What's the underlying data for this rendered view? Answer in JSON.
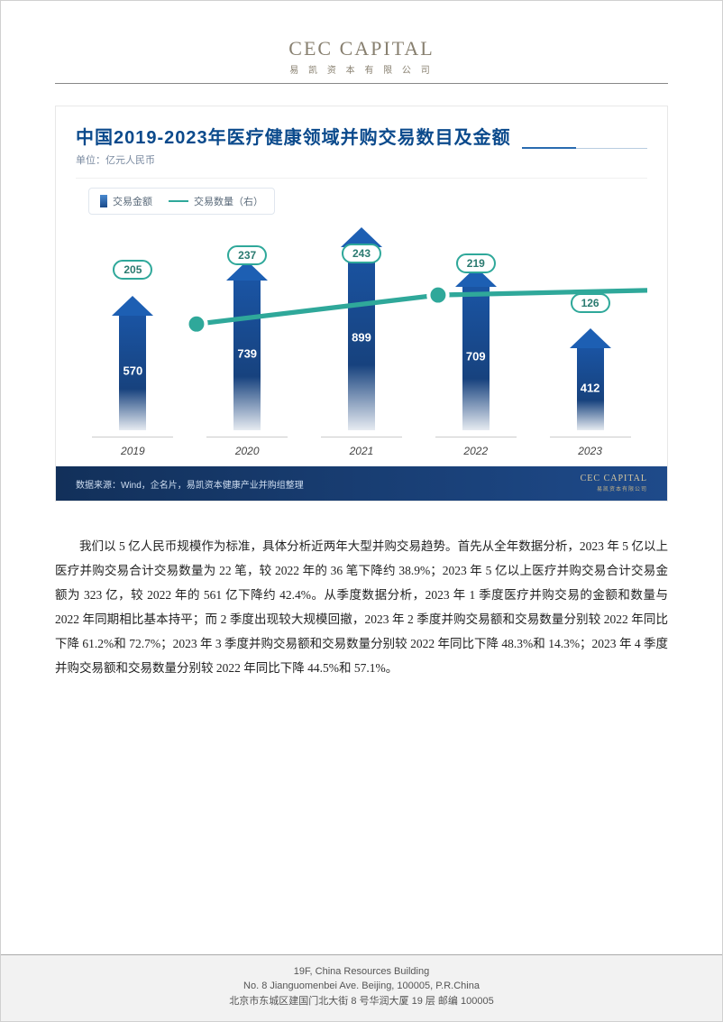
{
  "header": {
    "logo_main": "CEC CAPITAL",
    "logo_sub": "易 凯 资 本 有 限 公 司"
  },
  "chart": {
    "type": "bar+line",
    "title": "中国2019-2023年医疗健康领域并购交易数目及金额",
    "unit": "单位：亿元人民币",
    "legend_bar": "交易金额",
    "legend_line": "交易数量（右）",
    "categories": [
      "2019",
      "2020",
      "2021",
      "2022",
      "2023"
    ],
    "bar_values": [
      570,
      739,
      899,
      709,
      412
    ],
    "bar_max": 1000,
    "bar_color_top": "#1d5fb3",
    "bar_color_mid": "#17427e",
    "line_values": [
      205,
      237,
      243,
      219,
      126
    ],
    "line_max": 300,
    "line_color": "#2fa89a",
    "source": "数据来源：Wind，企名片，易凯资本健康产业并购组整理",
    "footer_logo": "CEC CAPITAL",
    "footer_logo_sub": "易凯资本有限公司"
  },
  "paragraph": "我们以 5 亿人民币规模作为标准，具体分析近两年大型并购交易趋势。首先从全年数据分析，2023 年 5 亿以上医疗并购交易合计交易数量为 22 笔，较 2022 年的 36 笔下降约 38.9%；2023 年 5 亿以上医疗并购交易合计交易金额为 323 亿，较 2022 年的 561 亿下降约 42.4%。从季度数据分析，2023 年 1 季度医疗并购交易的金额和数量与 2022 年同期相比基本持平；而 2 季度出现较大规模回撤，2023 年 2 季度并购交易额和交易数量分别较 2022 年同比下降 61.2%和 72.7%；2023 年 3 季度并购交易额和交易数量分别较 2022 年同比下降 48.3%和 14.3%；2023 年 4 季度并购交易额和交易数量分别较 2022 年同比下降 44.5%和 57.1%。",
  "footer": {
    "line1": "19F, China Resources Building",
    "line2": "No. 8 Jianguomenbei Ave. Beijing, 100005, P.R.China",
    "line3": "北京市东城区建国门北大街 8 号华润大厦 19 层  邮编  100005"
  }
}
